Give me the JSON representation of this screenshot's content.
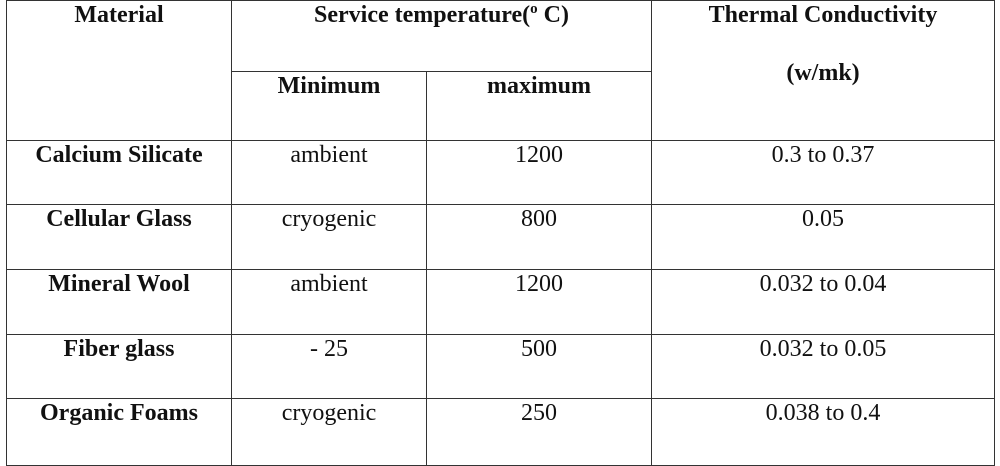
{
  "table": {
    "header": {
      "material": "Material",
      "service_temperature": "Service temperature(",
      "degree_symbol": "o",
      "service_temperature_unit": " C)",
      "minimum": "Minimum",
      "maximum": "maximum",
      "thermal_line1": "Thermal Conductivity",
      "thermal_line2": "(w/mk)"
    },
    "rows": [
      {
        "material": "Calcium Silicate",
        "min": "ambient",
        "max": "1200",
        "conductivity": "0.3 to 0.37"
      },
      {
        "material": "Cellular Glass",
        "min": "cryogenic",
        "max": "800",
        "conductivity": "0.05"
      },
      {
        "material": "Mineral Wool",
        "min": "ambient",
        "max": "1200",
        "conductivity": "0.032 to 0.04"
      },
      {
        "material": "Fiber glass",
        "min": "- 25",
        "max": "500",
        "conductivity": "0.032 to 0.05"
      },
      {
        "material": "Organic Foams",
        "min": "cryogenic",
        "max": "250",
        "conductivity": "0.038 to 0.4"
      }
    ]
  }
}
